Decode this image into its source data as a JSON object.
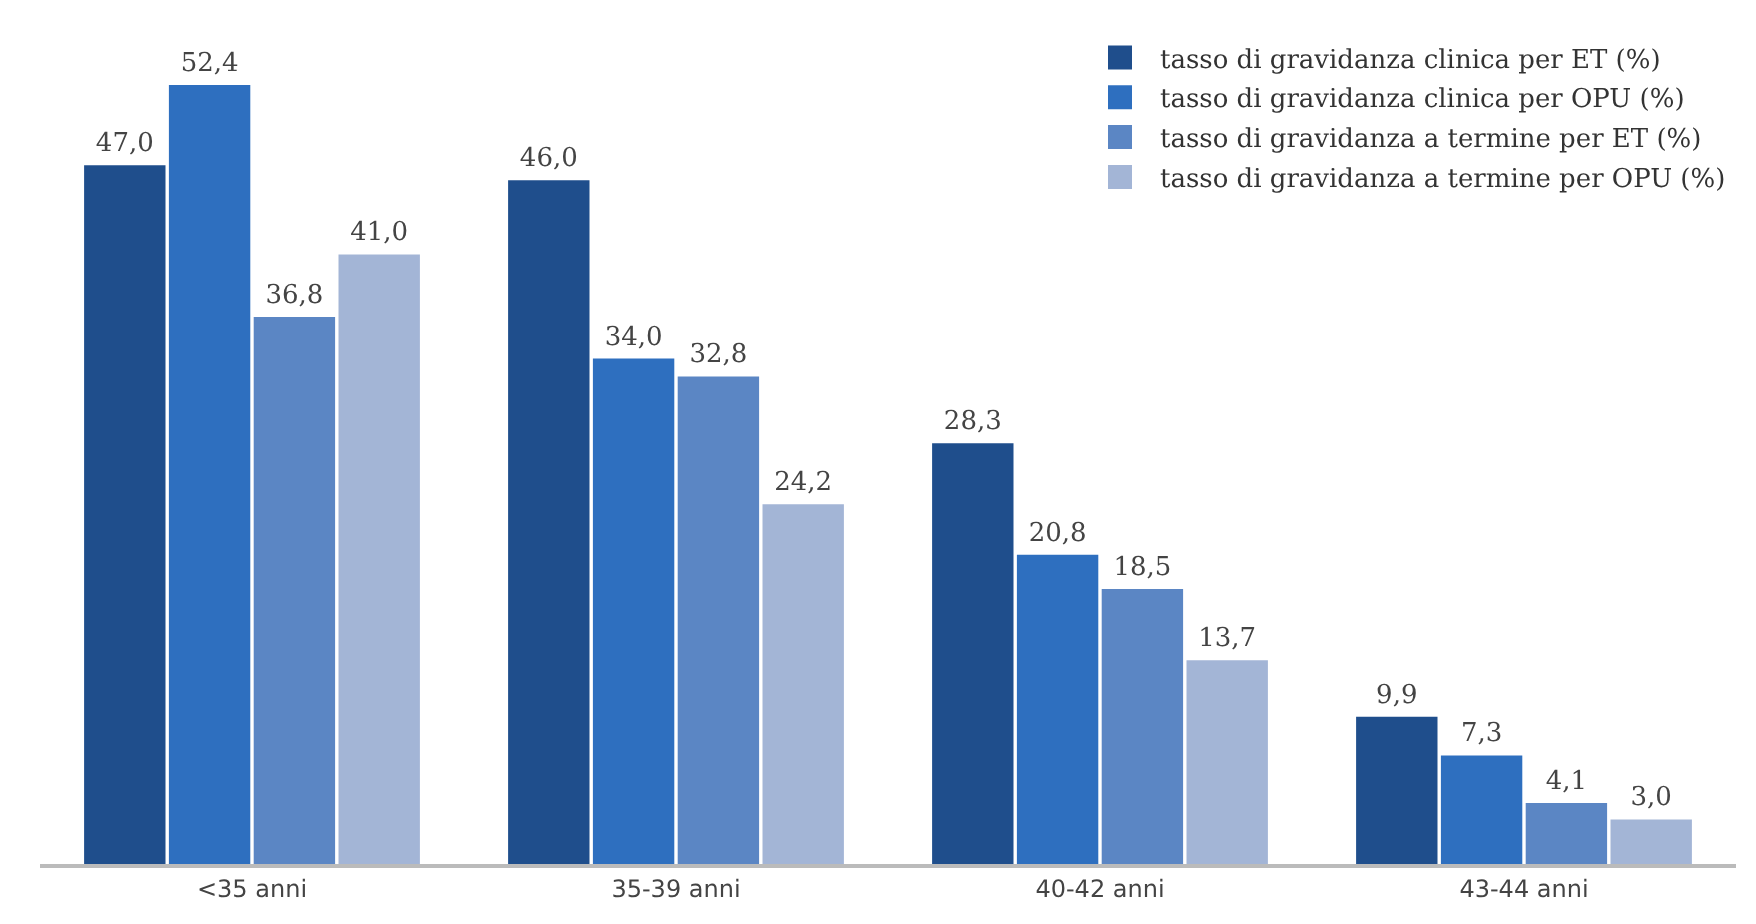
{
  "chart_data": {
    "type": "bar",
    "categories": [
      "<35 anni",
      "35-39 anni",
      "40-42 anni",
      "43-44 anni"
    ],
    "series": [
      {
        "name": "tasso di gravidanza clinica per ET (%)",
        "color": "#1f4e8c",
        "values": [
          47.0,
          46.0,
          28.3,
          9.9
        ],
        "value_labels": [
          "47,0",
          "46,0",
          "28,3",
          "9,9"
        ]
      },
      {
        "name": "tasso di gravidanza clinica per OPU (%)",
        "color": "#2e6fbf",
        "values": [
          52.4,
          34.0,
          20.8,
          7.3
        ],
        "value_labels": [
          "52,4",
          "34,0",
          "20,8",
          "7,3"
        ]
      },
      {
        "name": "tasso di gravidanza a termine per ET (%)",
        "color": "#5b86c4",
        "values": [
          36.8,
          32.8,
          18.5,
          4.1
        ],
        "value_labels": [
          "36,8",
          "32,8",
          "18,5",
          "4,1"
        ]
      },
      {
        "name": "tasso di gravidanza a termine per OPU (%)",
        "color": "#a3b5d6",
        "values": [
          41.0,
          24.2,
          13.7,
          3.0
        ],
        "value_labels": [
          "41,0",
          "24,2",
          "13,7",
          "3,0"
        ]
      }
    ],
    "grid": false,
    "legend": "top right"
  }
}
